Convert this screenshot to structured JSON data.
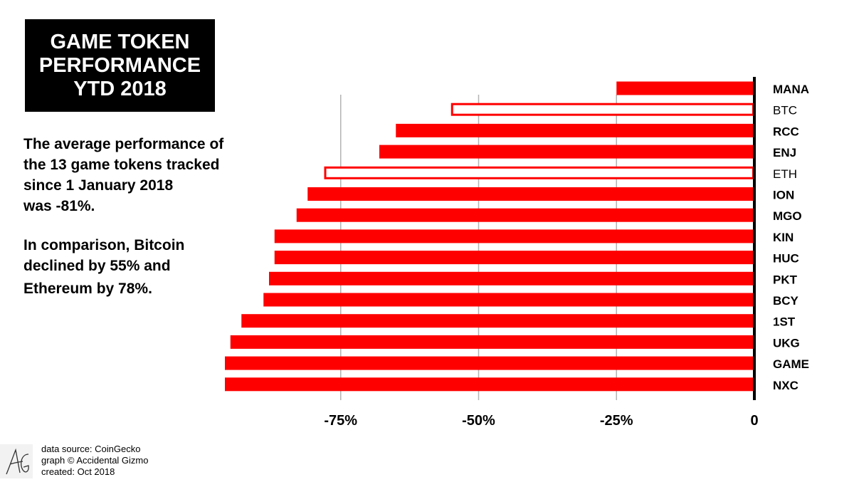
{
  "title": {
    "lines": [
      "GAME TOKEN",
      "PERFORMANCE",
      "YTD 2018"
    ]
  },
  "description": {
    "p1": [
      "The average performance of",
      "the 13 game tokens tracked",
      "since 1 January 2018",
      "was -81%."
    ],
    "p2": [
      "In comparison, Bitcoin",
      "declined by 55% and",
      "Ethereum by 78%."
    ]
  },
  "footer": {
    "source": "data source: CoinGecko",
    "credit": "graph © Accidental Gizmo",
    "created": "created: Oct 2018"
  },
  "colors": {
    "bar": "#ff0000",
    "grid": "#b3b3b3",
    "axis": "#000000"
  },
  "chart_data": {
    "type": "bar",
    "orientation": "horizontal",
    "xlim": [
      -100,
      0
    ],
    "grid": true,
    "x_ticks": [
      {
        "value": -75,
        "label": "-75%"
      },
      {
        "value": -50,
        "label": "-50%"
      },
      {
        "value": -25,
        "label": "-25%"
      },
      {
        "value": 0,
        "label": "0"
      }
    ],
    "categories": [
      "MANA",
      "BTC",
      "RCC",
      "ENJ",
      "ETH",
      "ION",
      "MGO",
      "KIN",
      "HUC",
      "PKT",
      "BCY",
      "1ST",
      "UKG",
      "GAME",
      "NXC"
    ],
    "values": [
      -25,
      -55,
      -65,
      -68,
      -78,
      -81,
      -83,
      -87,
      -87,
      -88,
      -89,
      -93,
      -95,
      -96,
      -96
    ],
    "outlined": [
      "BTC",
      "ETH"
    ]
  }
}
